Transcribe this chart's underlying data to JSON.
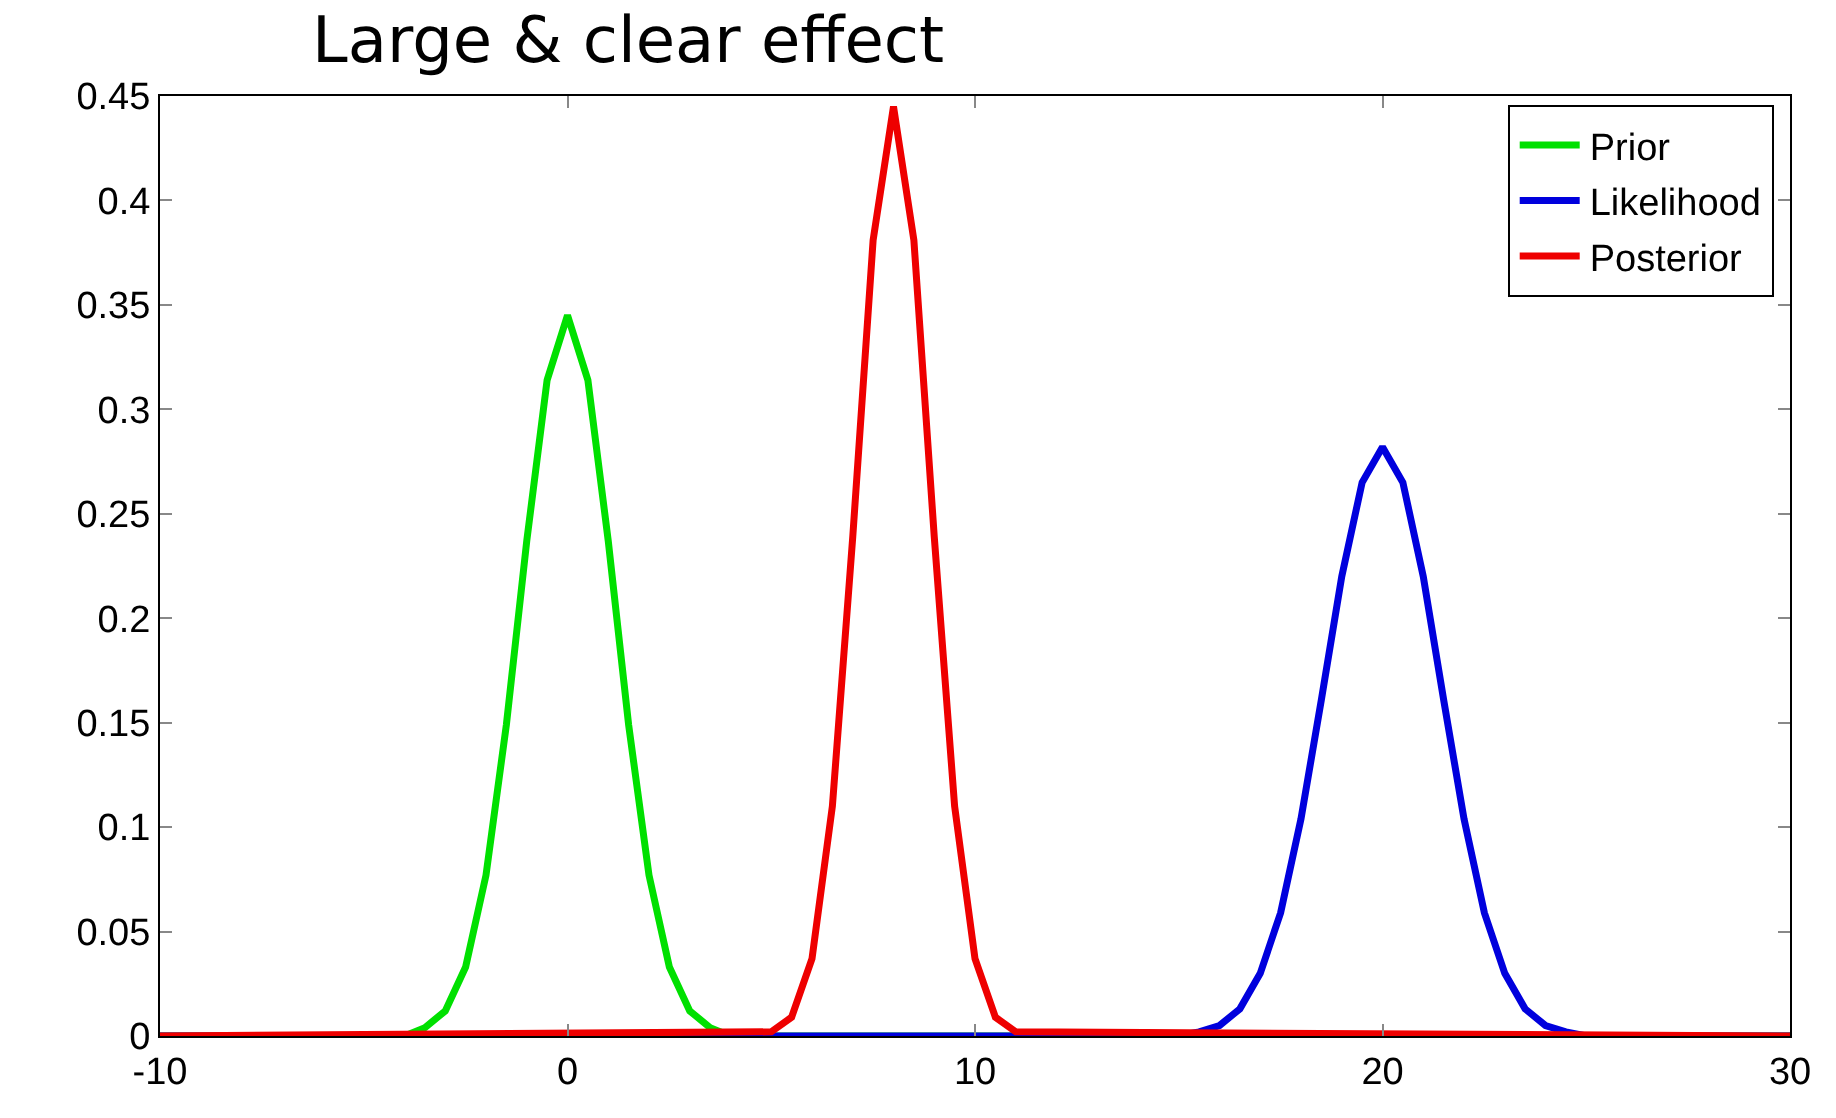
{
  "chart_data": {
    "type": "line",
    "title": "Large & clear effect",
    "series": [
      {
        "name": "Prior",
        "color": "#00e000",
        "x": [
          -10,
          -4,
          -3.5,
          -3,
          -2.5,
          -2,
          -1.5,
          -1,
          -0.5,
          0,
          0.5,
          1,
          1.5,
          2,
          2.5,
          3,
          3.5,
          4,
          30
        ],
        "values": [
          0,
          0,
          0.004,
          0.012,
          0.033,
          0.077,
          0.149,
          0.237,
          0.314,
          0.345,
          0.314,
          0.237,
          0.149,
          0.077,
          0.033,
          0.012,
          0.004,
          0,
          0
        ]
      },
      {
        "name": "Likelihood",
        "color": "#0000dd",
        "x": [
          -10,
          15,
          15.5,
          16,
          16.5,
          17,
          17.5,
          18,
          18.5,
          19,
          19.5,
          20,
          20.5,
          21,
          21.5,
          22,
          22.5,
          23,
          23.5,
          24,
          24.5,
          25,
          30
        ],
        "values": [
          0,
          0,
          0.002,
          0.005,
          0.013,
          0.03,
          0.059,
          0.104,
          0.161,
          0.22,
          0.265,
          0.282,
          0.265,
          0.22,
          0.161,
          0.104,
          0.059,
          0.03,
          0.013,
          0.005,
          0.002,
          0,
          0
        ]
      },
      {
        "name": "Posterior",
        "color": "#ee0000",
        "x": [
          -10,
          5,
          5.5,
          6,
          6.5,
          7,
          7.5,
          8,
          8.5,
          9,
          9.5,
          10,
          10.5,
          11,
          30
        ],
        "values": [
          0,
          0.002,
          0.009,
          0.037,
          0.11,
          0.239,
          0.381,
          0.445,
          0.381,
          0.239,
          0.11,
          0.037,
          0.009,
          0.002,
          0
        ]
      }
    ],
    "xlim": [
      -10,
      30
    ],
    "xticks": [
      -10,
      0,
      10,
      20,
      30
    ],
    "ylim": [
      0,
      0.45
    ],
    "yticks": [
      0,
      0.05,
      0.1,
      0.15,
      0.2,
      0.25,
      0.3,
      0.35,
      0.4,
      0.45
    ],
    "grid": false,
    "legend": "top right",
    "marker": "none",
    "line_style": "solid"
  }
}
